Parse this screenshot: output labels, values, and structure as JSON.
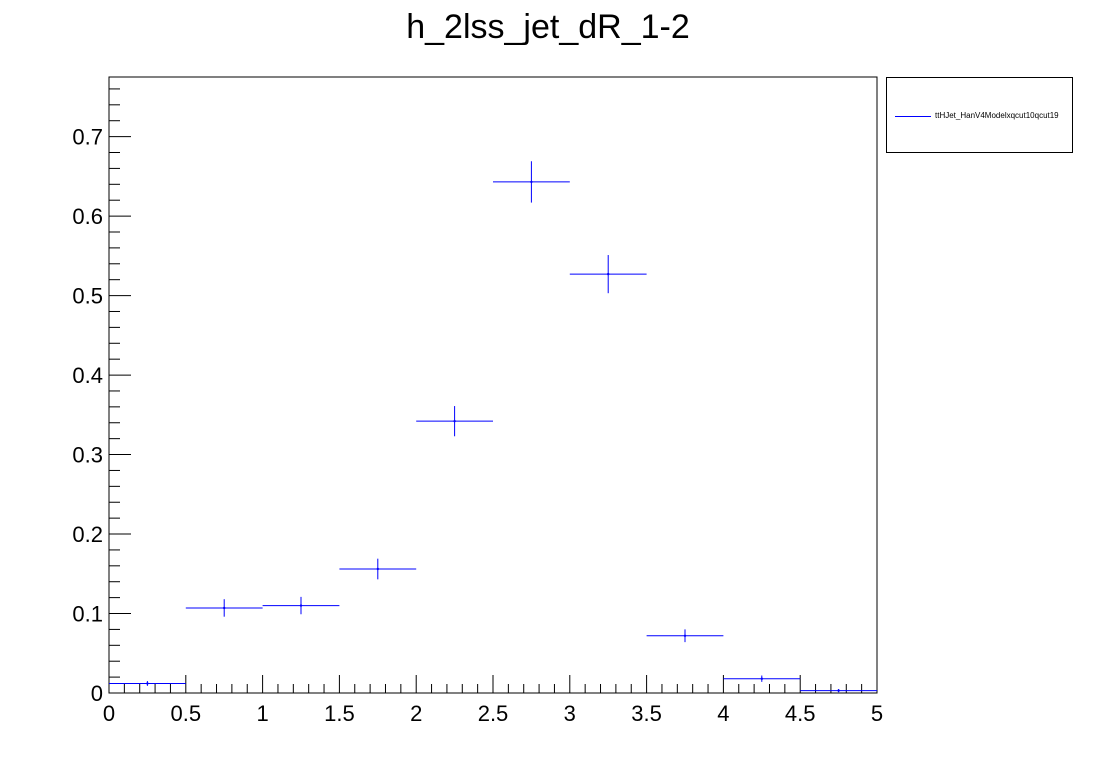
{
  "chart_data": {
    "type": "scatter",
    "title": "h_2lss_jet_dR_1-2",
    "xlabel": "",
    "ylabel": "",
    "xlim": [
      0,
      5
    ],
    "ylim": [
      0,
      0.775
    ],
    "x_ticks": [
      "0",
      "0.5",
      "1",
      "1.5",
      "2",
      "2.5",
      "3",
      "3.5",
      "4",
      "4.5",
      "5"
    ],
    "y_ticks": [
      "0",
      "0.1",
      "0.2",
      "0.3",
      "0.4",
      "0.5",
      "0.6",
      "0.7"
    ],
    "legend_position": "top-right",
    "grid": false,
    "series": [
      {
        "name": "ttHJet_HanV4Modelxqcut10qcut19",
        "color": "#0000ff",
        "bins": [
          {
            "x_low": 0.0,
            "x_high": 0.5,
            "y": 0.012,
            "err": 0.003
          },
          {
            "x_low": 0.5,
            "x_high": 1.0,
            "y": 0.107,
            "err": 0.011
          },
          {
            "x_low": 1.0,
            "x_high": 1.5,
            "y": 0.11,
            "err": 0.011
          },
          {
            "x_low": 1.5,
            "x_high": 2.0,
            "y": 0.156,
            "err": 0.013
          },
          {
            "x_low": 2.0,
            "x_high": 2.5,
            "y": 0.342,
            "err": 0.019
          },
          {
            "x_low": 2.5,
            "x_high": 3.0,
            "y": 0.643,
            "err": 0.026
          },
          {
            "x_low": 3.0,
            "x_high": 3.5,
            "y": 0.527,
            "err": 0.024
          },
          {
            "x_low": 3.5,
            "x_high": 4.0,
            "y": 0.072,
            "err": 0.008
          },
          {
            "x_low": 4.0,
            "x_high": 4.5,
            "y": 0.018,
            "err": 0.004
          },
          {
            "x_low": 4.5,
            "x_high": 5.0,
            "y": 0.003,
            "err": 0.002
          }
        ]
      }
    ]
  }
}
